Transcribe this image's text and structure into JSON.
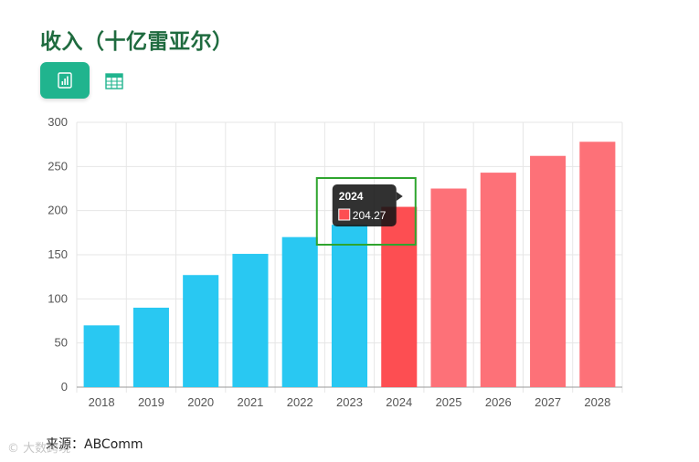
{
  "title": "收入（十亿雷亚尔）",
  "view_buttons": {
    "chart_icon": "bar-chart-icon",
    "table_icon": "table-grid-icon"
  },
  "source": "来源：ABComm",
  "watermark": "© 大数跨境",
  "colors": {
    "actual": "#29c8f2",
    "forecast": "#fd7178",
    "highlight": "#fd4e52",
    "title": "#1f6b3f",
    "accent": "#20b48e",
    "tooltip_border": "#2ea52e"
  },
  "chart_data": {
    "type": "bar",
    "title": "收入（十亿雷亚尔）",
    "categories": [
      "2018",
      "2019",
      "2020",
      "2021",
      "2022",
      "2023",
      "2024",
      "2025",
      "2026",
      "2027",
      "2028"
    ],
    "values": [
      70,
      90,
      127,
      151,
      170,
      184,
      204.27,
      225,
      243,
      262,
      278
    ],
    "forecast_from": "2025",
    "ylim": [
      0,
      300
    ],
    "yticks": [
      0,
      50,
      100,
      150,
      200,
      250,
      300
    ],
    "grid": true,
    "tooltip": {
      "category": "2024",
      "value": "204.27"
    }
  }
}
